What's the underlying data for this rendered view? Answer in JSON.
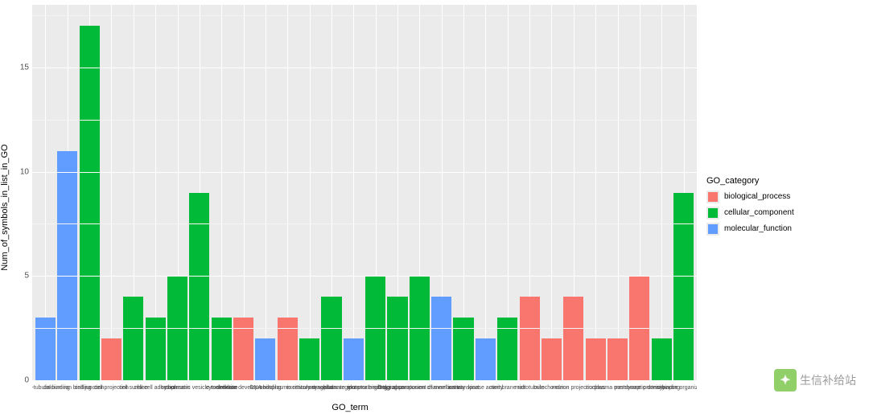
{
  "chart": {
    "type": "bar",
    "background_color": "#ffffff",
    "panel_color": "#ebebeb",
    "grid_major_color": "#ffffff",
    "grid_minor_color": "#f4f4f4",
    "x_label": "GO_term",
    "y_label": "Num_of_symbols_in_list_in_GO",
    "label_fontsize": 11,
    "tick_fontsize": 10,
    "x_tick_fontsize": 7,
    "ylim": [
      0,
      18
    ],
    "y_ticks": [
      0,
      5,
      10,
      15
    ],
    "y_minor": [
      2.5,
      7.5,
      12.5,
      17.5
    ],
    "bar_width": 0.92,
    "categories_palette": {
      "biological_process": "#f8766d",
      "cellular_component": "#00ba38",
      "molecular_function": "#619cff"
    },
    "data": [
      {
        "label": "beta-tubulin binding",
        "value": 3,
        "cat": "molecular_function"
      },
      {
        "label": "calcium ion binding",
        "value": 11,
        "cat": "molecular_function"
      },
      {
        "label": "cell junction",
        "value": 17,
        "cat": "cellular_component"
      },
      {
        "label": "cell projection",
        "value": 2,
        "cat": "biological_process"
      },
      {
        "label": "cell surface",
        "value": 4,
        "cat": "cellular_component"
      },
      {
        "label": "cell-cell adhesion",
        "value": 3,
        "cat": "cellular_component"
      },
      {
        "label": "chromatin",
        "value": 5,
        "cat": "cellular_component"
      },
      {
        "label": "cytoplasmic vesicle membrane",
        "value": 9,
        "cat": "cellular_component"
      },
      {
        "label": "cytoskeleton",
        "value": 3,
        "cat": "cellular_component"
      },
      {
        "label": "dendrite development",
        "value": 3,
        "cat": "biological_process"
      },
      {
        "label": "DNA binding",
        "value": 2,
        "cat": "molecular_function"
      },
      {
        "label": "endoplasmic reticulum",
        "value": 3,
        "cat": "biological_process"
      },
      {
        "label": "excitatory synapse",
        "value": 2,
        "cat": "cellular_component"
      },
      {
        "label": "extracellular region",
        "value": 4,
        "cat": "cellular_component"
      },
      {
        "label": "glutamate receptor binding",
        "value": 2,
        "cat": "molecular_function"
      },
      {
        "label": "glutamatergic synapse",
        "value": 5,
        "cat": "cellular_component"
      },
      {
        "label": "Golgi apparatus",
        "value": 4,
        "cat": "cellular_component"
      },
      {
        "label": "integral component of membrane",
        "value": 5,
        "cat": "cellular_component"
      },
      {
        "label": "ion channel activity",
        "value": 4,
        "cat": "molecular_function"
      },
      {
        "label": "ion transport",
        "value": 3,
        "cat": "cellular_component"
      },
      {
        "label": "kinase activity",
        "value": 2,
        "cat": "molecular_function"
      },
      {
        "label": "membrane raft",
        "value": 3,
        "cat": "cellular_component"
      },
      {
        "label": "microtubule",
        "value": 4,
        "cat": "biological_process"
      },
      {
        "label": "mitochondrion",
        "value": 2,
        "cat": "biological_process"
      },
      {
        "label": "neuron projection",
        "value": 4,
        "cat": "biological_process"
      },
      {
        "label": "nucleus",
        "value": 2,
        "cat": "biological_process"
      },
      {
        "label": "plasma membrane",
        "value": 2,
        "cat": "biological_process"
      },
      {
        "label": "postsynaptic density",
        "value": 5,
        "cat": "biological_process"
      },
      {
        "label": "protein binding",
        "value": 2,
        "cat": "cellular_component"
      },
      {
        "label": "synapse organization",
        "value": 9,
        "cat": "cellular_component"
      }
    ]
  },
  "legend": {
    "title": "GO_category",
    "items": [
      {
        "label": "biological_process",
        "color": "#f8766d"
      },
      {
        "label": "cellular_component",
        "color": "#00ba38"
      },
      {
        "label": "molecular_function",
        "color": "#619cff"
      }
    ]
  },
  "watermark": {
    "icon_color": "#7ec850",
    "icon_glyph": "✦",
    "text": "生信补给站"
  }
}
